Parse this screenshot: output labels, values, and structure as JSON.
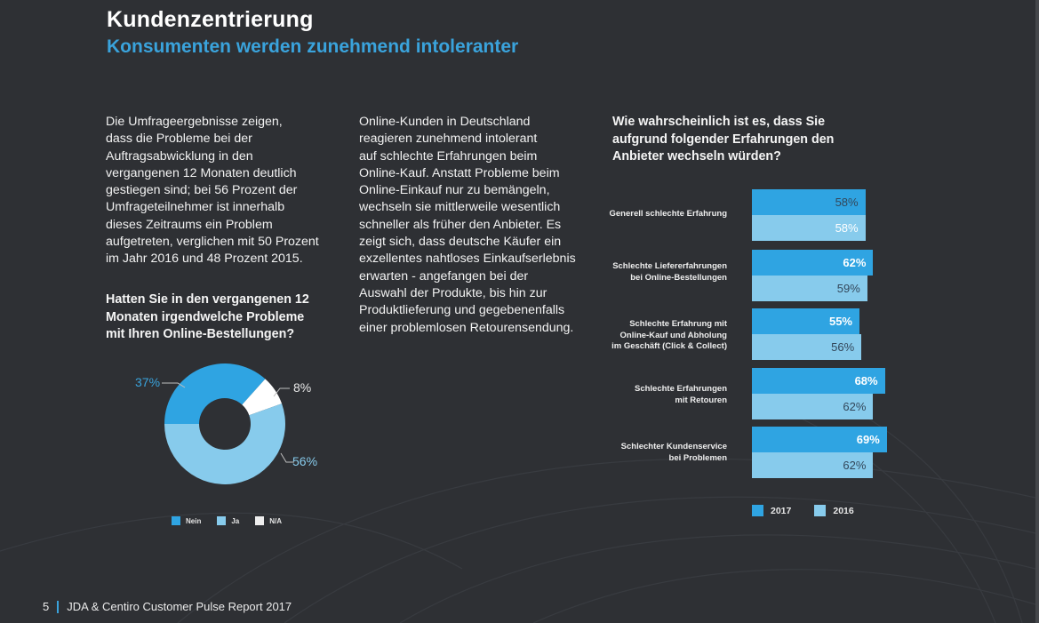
{
  "header": {
    "title": "Kundenzentrierung",
    "subtitle": "Konsumenten werden zunehmend intoleranter"
  },
  "intro_paragraph": {
    "lines": [
      "Die Umfrageergebnisse zeigen,",
      "dass die Probleme bei der",
      "Auftragsabwicklung in den",
      "vergangenen 12 Monaten deutlich",
      "gestiegen sind; bei 56 Prozent der",
      "Umfrageteilnehmer ist innerhalb",
      "dieses Zeitraums ein Problem",
      "aufgetreten, verglichen mit 50 Prozent",
      "im Jahr 2016 und 48 Prozent 2015."
    ]
  },
  "middle_paragraph": {
    "lines": [
      "Online-Kunden in Deutschland",
      "reagieren zunehmend intolerant",
      "auf schlechte Erfahrungen beim",
      "Online-Kauf. Anstatt Probleme beim",
      "Online-Einkauf nur zu bemängeln,",
      "wechseln sie mittlerweile wesentlich",
      "schneller als früher den Anbieter. Es",
      "zeigt sich, dass deutsche Käufer ein",
      "exzellentes nahtloses Einkaufserlebnis",
      "erwarten - angefangen bei der",
      "Auswahl der Produkte, bis hin zur",
      "Produktlieferung und gegebenenfalls",
      "einer problemlosen Retourensendung."
    ]
  },
  "colors": {
    "background": "#2e3034",
    "accent": "#3aa3dc",
    "series_2017": "#2fa4e2",
    "series_2016": "#87cbec",
    "na": "#ffffff"
  },
  "chart_data": [
    {
      "type": "pie",
      "title_lines": [
        "Hatten Sie in den vergangenen 12",
        "Monaten irgendwelche Probleme",
        "mit Ihren Online-Bestellungen?"
      ],
      "donut": true,
      "slices": [
        {
          "label": "Nein",
          "value": 37,
          "display": "37%",
          "color": "#2fa4e2"
        },
        {
          "label": "N/A",
          "value": 8,
          "display": "8%",
          "color": "#ffffff"
        },
        {
          "label": "Ja",
          "value": 56,
          "display": "56%",
          "color": "#87cbec"
        }
      ],
      "legend": [
        "Nein",
        "Ja",
        "N/A"
      ],
      "legend_placement": "bottom"
    },
    {
      "type": "bar",
      "orientation": "horizontal",
      "title_lines": [
        "Wie wahrscheinlich ist es, dass Sie",
        "aufgrund folgender Erfahrungen den",
        "Anbieter wechseln würden?"
      ],
      "categories": [
        [
          "Generell schlechte Erfahrung"
        ],
        [
          "Schlechte Liefererfahrungen",
          "bei Online-Bestellungen"
        ],
        [
          "Schlechte Erfahrung mit",
          "Online-Kauf und Abholung",
          "im Geschäft (Click & Collect)"
        ],
        [
          "Schlechte Erfahrungen",
          "mit Retouren"
        ],
        [
          "Schlechter Kundenservice",
          "bei Problemen"
        ]
      ],
      "series": [
        {
          "name": "2017",
          "values": [
            58,
            62,
            55,
            68,
            69
          ],
          "labels": [
            "58%",
            "62%",
            "55%",
            "68%",
            "69%"
          ],
          "color": "#2fa4e2"
        },
        {
          "name": "2016",
          "values": [
            58,
            59,
            56,
            62,
            62
          ],
          "labels": [
            "58%",
            "59%",
            "56%",
            "62%",
            "62%"
          ],
          "color": "#87cbec"
        }
      ],
      "xlim": [
        0,
        100
      ],
      "legend_placement": "bottom"
    }
  ],
  "footer": {
    "page_number": "5",
    "report_title": "JDA & Centiro Customer Pulse Report 2017"
  }
}
